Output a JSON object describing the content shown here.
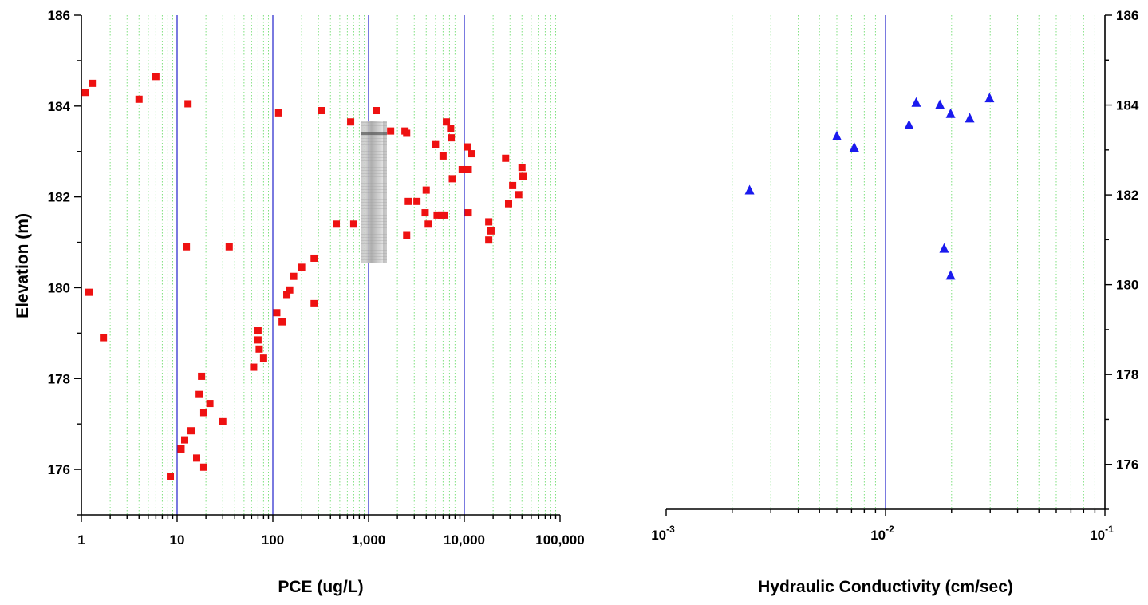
{
  "chart_data": [
    {
      "type": "scatter",
      "xlabel": "PCE (ug/L)",
      "ylabel": "Elevation (m)",
      "x_scale": "log",
      "xlim": [
        1,
        100000
      ],
      "ylim": [
        175,
        186
      ],
      "x_ticks": [
        1,
        10,
        100,
        1000,
        10000,
        100000
      ],
      "x_tick_labels": [
        "1",
        "10",
        "100",
        "1,000",
        "10,000",
        "100,000"
      ],
      "y_ticks": [
        176,
        178,
        180,
        182,
        184,
        186
      ],
      "y_tick_labels": [
        "176",
        "178",
        "180",
        "182",
        "184",
        "186"
      ],
      "grid": {
        "major": "blue vertical lines",
        "minor": "dotted green vertical lines"
      },
      "marker": {
        "shape": "square",
        "color": "#ee1111"
      },
      "points": [
        [
          1.1,
          184.3
        ],
        [
          1.3,
          184.5
        ],
        [
          4.0,
          184.15
        ],
        [
          6.0,
          184.65
        ],
        [
          13,
          184.05
        ],
        [
          1.2,
          179.9
        ],
        [
          1.7,
          178.9
        ],
        [
          12.5,
          180.9
        ],
        [
          35,
          180.9
        ],
        [
          115,
          183.85
        ],
        [
          320,
          183.9
        ],
        [
          650,
          183.65
        ],
        [
          1200,
          183.9
        ],
        [
          1700,
          183.45
        ],
        [
          2400,
          183.45
        ],
        [
          2500,
          183.4
        ],
        [
          6500,
          183.65
        ],
        [
          7200,
          183.5
        ],
        [
          7300,
          183.3
        ],
        [
          5000,
          183.15
        ],
        [
          6000,
          182.9
        ],
        [
          7500,
          182.4
        ],
        [
          9500,
          182.6
        ],
        [
          10500,
          182.6
        ],
        [
          11000,
          182.6
        ],
        [
          10800,
          183.1
        ],
        [
          12000,
          182.95
        ],
        [
          27000,
          182.85
        ],
        [
          40000,
          182.65
        ],
        [
          41000,
          182.45
        ],
        [
          32000,
          182.25
        ],
        [
          37000,
          182.05
        ],
        [
          29000,
          181.85
        ],
        [
          4000,
          182.15
        ],
        [
          2600,
          181.9
        ],
        [
          3200,
          181.9
        ],
        [
          3900,
          181.65
        ],
        [
          4200,
          181.4
        ],
        [
          5200,
          181.6
        ],
        [
          5800,
          181.6
        ],
        [
          6200,
          181.6
        ],
        [
          11000,
          181.65
        ],
        [
          18000,
          181.45
        ],
        [
          19000,
          181.25
        ],
        [
          18000,
          181.05
        ],
        [
          2500,
          181.15
        ],
        [
          460,
          181.4
        ],
        [
          700,
          181.4
        ],
        [
          270,
          180.65
        ],
        [
          200,
          180.45
        ],
        [
          165,
          180.25
        ],
        [
          150,
          179.95
        ],
        [
          140,
          179.85
        ],
        [
          270,
          179.65
        ],
        [
          110,
          179.45
        ],
        [
          125,
          179.25
        ],
        [
          70,
          179.05
        ],
        [
          70,
          178.85
        ],
        [
          72,
          178.65
        ],
        [
          80,
          178.45
        ],
        [
          63,
          178.25
        ],
        [
          18,
          178.05
        ],
        [
          17,
          177.65
        ],
        [
          22,
          177.45
        ],
        [
          19,
          177.25
        ],
        [
          30,
          177.05
        ],
        [
          14,
          176.85
        ],
        [
          12,
          176.65
        ],
        [
          11,
          176.45
        ],
        [
          16,
          176.25
        ],
        [
          19,
          176.05
        ],
        [
          8.5,
          175.85
        ]
      ]
    },
    {
      "type": "scatter",
      "xlabel": "Hydraulic Conductivity (cm/sec)",
      "ylabel": "",
      "x_scale": "log",
      "xlim": [
        0.001,
        0.1
      ],
      "ylim": [
        175,
        186
      ],
      "x_ticks": [
        0.001,
        0.01,
        0.1
      ],
      "x_tick_base": [
        "10",
        "10",
        "10"
      ],
      "x_tick_exp": [
        "-3",
        "-2",
        "-1"
      ],
      "y_ticks": [
        176,
        178,
        180,
        182,
        184,
        186
      ],
      "y_tick_labels": [
        "176",
        "178",
        "180",
        "182",
        "184",
        "186"
      ],
      "y_axis_position": "right",
      "grid": {
        "major": "blue vertical lines",
        "minor": "dotted green vertical lines"
      },
      "marker": {
        "shape": "triangle",
        "color": "#1a1aee"
      },
      "points": [
        [
          0.0024,
          182.1
        ],
        [
          0.006,
          183.3
        ],
        [
          0.0072,
          183.05
        ],
        [
          0.0128,
          183.55
        ],
        [
          0.0138,
          184.05
        ],
        [
          0.0177,
          184.0
        ],
        [
          0.0198,
          183.8
        ],
        [
          0.0242,
          183.7
        ],
        [
          0.0298,
          184.15
        ],
        [
          0.0185,
          180.8
        ],
        [
          0.0198,
          180.2
        ]
      ]
    }
  ]
}
